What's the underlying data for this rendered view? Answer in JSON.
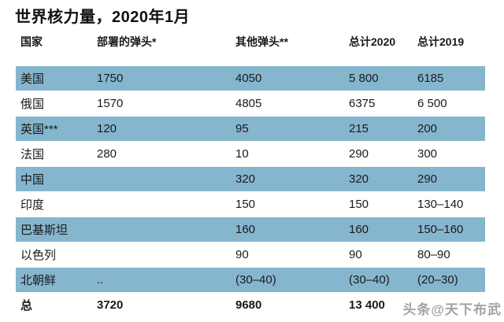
{
  "title": "世界核力量，2020年1月",
  "watermark": "头条@天下布武",
  "colors": {
    "shaded_row": "#86b6ce",
    "text": "#1a1a1a",
    "watermark": "#9a9a9a"
  },
  "chart_data": {
    "type": "table",
    "title": "世界核力量，2020年1月",
    "columns": [
      "国家",
      "部署的弹头*",
      "其他弹头**",
      "总计2020",
      "总计2019"
    ],
    "rows": [
      {
        "country": "美国",
        "deployed": "1750",
        "other": "4050",
        "total2020": "5 800",
        "total2019": "6185"
      },
      {
        "country": "俄国",
        "deployed": "1570",
        "other": "4805",
        "total2020": "6375",
        "total2019": "6 500"
      },
      {
        "country": "英国***",
        "deployed": "120",
        "other": "95",
        "total2020": "215",
        "total2019": "200"
      },
      {
        "country": "法国",
        "deployed": "280",
        "other": "10",
        "total2020": "290",
        "total2019": "300"
      },
      {
        "country": "中国",
        "deployed": "",
        "other": "320",
        "total2020": "320",
        "total2019": "290"
      },
      {
        "country": "印度",
        "deployed": "",
        "other": "150",
        "total2020": "150",
        "total2019": "130–140"
      },
      {
        "country": "巴基斯坦",
        "deployed": "",
        "other": "160",
        "total2020": "160",
        "total2019": "150–160"
      },
      {
        "country": "以色列",
        "deployed": "",
        "other": "90",
        "total2020": "90",
        "total2019": "80–90"
      },
      {
        "country": "北朝鲜",
        "deployed": "..",
        "other": "(30–40)",
        "total2020": "(30–40)",
        "total2019": "(20–30)"
      },
      {
        "country": "总",
        "deployed": "3720",
        "other": "9680",
        "total2020": "13 400",
        "total2019": ""
      }
    ]
  }
}
